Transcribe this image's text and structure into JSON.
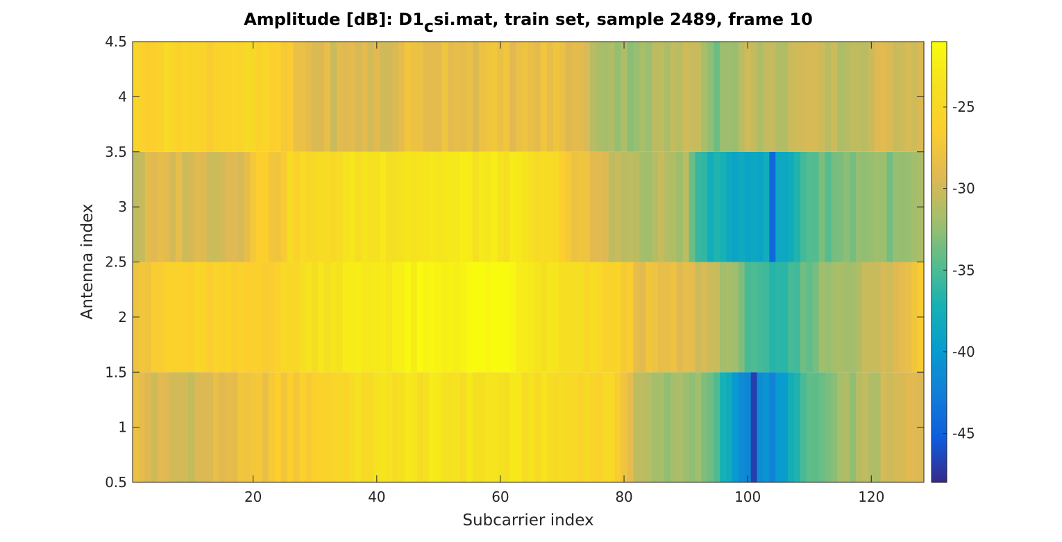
{
  "chart_data": {
    "type": "heatmap",
    "title": {
      "prefix": "Amplitude [dB]: D1",
      "subscript": "c",
      "suffix": "si.mat, train set, sample 2489, frame 10"
    },
    "xlabel": "Subcarrier index",
    "ylabel": "Antenna index",
    "x_range": [
      1,
      128
    ],
    "xlim": [
      0.5,
      128.5
    ],
    "ylim": [
      0.5,
      4.5
    ],
    "x_ticks": [
      20,
      40,
      60,
      80,
      100,
      120
    ],
    "y_ticks": [
      {
        "value": 0.5,
        "label": "0.5"
      },
      {
        "value": 1,
        "label": "1"
      },
      {
        "value": 1.5,
        "label": "1.5"
      },
      {
        "value": 2,
        "label": "2"
      },
      {
        "value": 2.5,
        "label": "2.5"
      },
      {
        "value": 3,
        "label": "3"
      },
      {
        "value": 3.5,
        "label": "3.5"
      },
      {
        "value": 4,
        "label": "4"
      },
      {
        "value": 4.5,
        "label": "4.5"
      }
    ],
    "colormap": "parula",
    "clim": [
      -48,
      -21
    ],
    "colorbar_ticks": [
      {
        "value": -45,
        "label": "-45"
      },
      {
        "value": -40,
        "label": "-40"
      },
      {
        "value": -35,
        "label": "-35"
      },
      {
        "value": -30,
        "label": "-30"
      },
      {
        "value": -25,
        "label": "-25"
      }
    ],
    "grid": false,
    "rows": [
      {
        "antenna": 1,
        "anchors": [
          [
            1,
            -28.5
          ],
          [
            4,
            -29.5
          ],
          [
            8,
            -29.8
          ],
          [
            12,
            -29.5
          ],
          [
            16,
            -28.5
          ],
          [
            20,
            -28
          ],
          [
            24,
            -27
          ],
          [
            28,
            -26.5
          ],
          [
            32,
            -25.5
          ],
          [
            36,
            -24.5
          ],
          [
            40,
            -24
          ],
          [
            45,
            -23.5
          ],
          [
            50,
            -23.5
          ],
          [
            55,
            -23.5
          ],
          [
            60,
            -23.5
          ],
          [
            65,
            -23.8
          ],
          [
            70,
            -24.5
          ],
          [
            74,
            -25
          ],
          [
            78,
            -25.5
          ],
          [
            80,
            -27
          ],
          [
            82,
            -30.5
          ],
          [
            85,
            -32
          ],
          [
            90,
            -31.5
          ],
          [
            94,
            -34
          ],
          [
            96,
            -37
          ],
          [
            98,
            -40
          ],
          [
            100,
            -42
          ],
          [
            101,
            -46
          ],
          [
            102,
            -41
          ],
          [
            104,
            -41.5
          ],
          [
            106,
            -40
          ],
          [
            108,
            -36
          ],
          [
            110,
            -35
          ],
          [
            112,
            -34
          ],
          [
            116,
            -32
          ],
          [
            120,
            -31
          ],
          [
            124,
            -30
          ],
          [
            128,
            -29
          ]
        ]
      },
      {
        "antenna": 2,
        "anchors": [
          [
            1,
            -27
          ],
          [
            4,
            -27.5
          ],
          [
            6,
            -26
          ],
          [
            10,
            -26
          ],
          [
            14,
            -26
          ],
          [
            18,
            -26.5
          ],
          [
            22,
            -26
          ],
          [
            25,
            -25.5
          ],
          [
            28,
            -24
          ],
          [
            32,
            -23
          ],
          [
            38,
            -22.8
          ],
          [
            45,
            -22
          ],
          [
            50,
            -22
          ],
          [
            55,
            -21.5
          ],
          [
            58,
            -21
          ],
          [
            62,
            -21.5
          ],
          [
            64,
            -23
          ],
          [
            68,
            -23.5
          ],
          [
            72,
            -24.5
          ],
          [
            76,
            -25
          ],
          [
            80,
            -26.5
          ],
          [
            82,
            -28
          ],
          [
            86,
            -28.5
          ],
          [
            90,
            -29
          ],
          [
            94,
            -30
          ],
          [
            97,
            -31.5
          ],
          [
            99,
            -34
          ],
          [
            102,
            -35
          ],
          [
            104,
            -37.5
          ],
          [
            107,
            -36
          ],
          [
            110,
            -33.5
          ],
          [
            114,
            -31.5
          ],
          [
            118,
            -31
          ],
          [
            122,
            -30
          ],
          [
            126,
            -28.5
          ],
          [
            128,
            -26
          ]
        ]
      },
      {
        "antenna": 3,
        "anchors": [
          [
            1,
            -30.5
          ],
          [
            3,
            -29.5
          ],
          [
            7,
            -29
          ],
          [
            12,
            -29.5
          ],
          [
            18,
            -29
          ],
          [
            20,
            -26.5
          ],
          [
            24,
            -27
          ],
          [
            26,
            -25
          ],
          [
            30,
            -25
          ],
          [
            34,
            -24
          ],
          [
            38,
            -23.5
          ],
          [
            44,
            -23
          ],
          [
            50,
            -23
          ],
          [
            56,
            -23
          ],
          [
            62,
            -23.3
          ],
          [
            66,
            -24.5
          ],
          [
            70,
            -25.5
          ],
          [
            72,
            -28
          ],
          [
            76,
            -29
          ],
          [
            78,
            -30.5
          ],
          [
            80,
            -30
          ],
          [
            83,
            -32
          ],
          [
            86,
            -31
          ],
          [
            90,
            -31.5
          ],
          [
            92,
            -36
          ],
          [
            94,
            -37
          ],
          [
            97,
            -38.5
          ],
          [
            100,
            -38
          ],
          [
            103,
            -38.5
          ],
          [
            104,
            -44
          ],
          [
            105,
            -39
          ],
          [
            107,
            -38
          ],
          [
            109,
            -35
          ],
          [
            112,
            -34
          ],
          [
            116,
            -33
          ],
          [
            120,
            -32
          ],
          [
            124,
            -33
          ],
          [
            128,
            -32
          ]
        ]
      },
      {
        "antenna": 4,
        "anchors": [
          [
            1,
            -26
          ],
          [
            4,
            -25.5
          ],
          [
            8,
            -25
          ],
          [
            12,
            -26
          ],
          [
            16,
            -25
          ],
          [
            20,
            -25.5
          ],
          [
            24,
            -26.5
          ],
          [
            27,
            -28
          ],
          [
            30,
            -29
          ],
          [
            34,
            -29.5
          ],
          [
            38,
            -29
          ],
          [
            42,
            -30
          ],
          [
            44,
            -28
          ],
          [
            48,
            -28.5
          ],
          [
            52,
            -28
          ],
          [
            56,
            -28.5
          ],
          [
            60,
            -28
          ],
          [
            64,
            -28.5
          ],
          [
            68,
            -28
          ],
          [
            72,
            -28.8
          ],
          [
            76,
            -31
          ],
          [
            80,
            -32
          ],
          [
            84,
            -31.5
          ],
          [
            88,
            -31
          ],
          [
            92,
            -30
          ],
          [
            95,
            -33
          ],
          [
            98,
            -31.5
          ],
          [
            100,
            -30.5
          ],
          [
            104,
            -31
          ],
          [
            108,
            -30
          ],
          [
            112,
            -30.5
          ],
          [
            116,
            -31
          ],
          [
            120,
            -30
          ],
          [
            124,
            -29.5
          ],
          [
            128,
            -29
          ]
        ]
      }
    ]
  }
}
